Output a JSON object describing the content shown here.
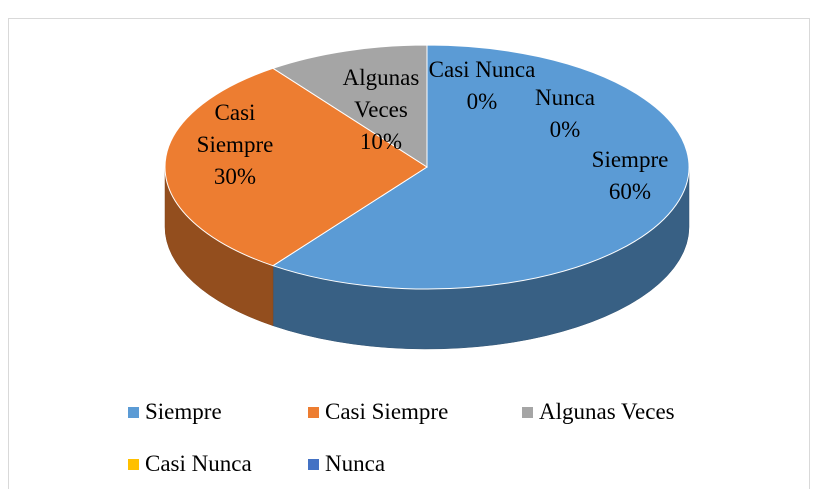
{
  "chart_data": {
    "type": "pie",
    "categories": [
      "Siempre",
      "Casi Siempre",
      "Algunas Veces",
      "Casi Nunca",
      "Nunca"
    ],
    "values": [
      60,
      30,
      10,
      0,
      0
    ],
    "value_labels": [
      "60%",
      "30%",
      "10%",
      "0%",
      "0%"
    ],
    "colors": [
      "#5b9bd5",
      "#ed7d31",
      "#a5a5a5",
      "#ffc000",
      "#4472c4"
    ],
    "legend": "bottom"
  }
}
